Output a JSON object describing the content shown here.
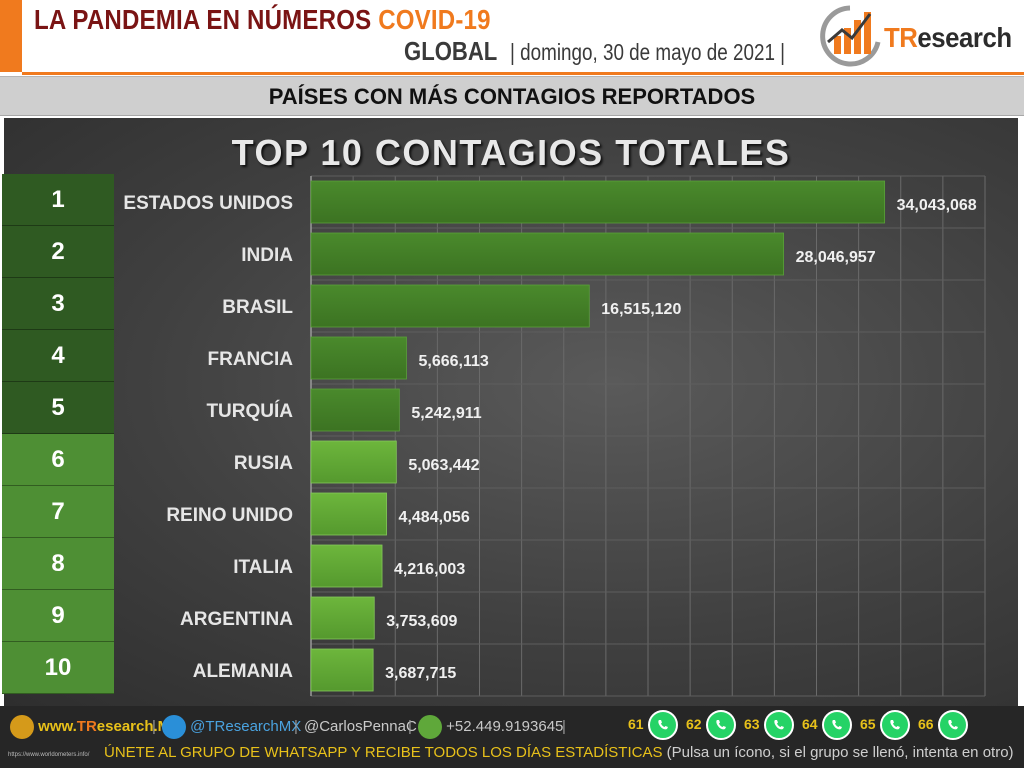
{
  "header": {
    "title_main": "LA PANDEMIA EN NÚMEROS",
    "title_accent": "COVID-19",
    "scope": "GLOBAL",
    "date": "| domingo, 30 de mayo de 2021 |",
    "logo_text_accent": "TR",
    "logo_text_rest": "esearch"
  },
  "section": {
    "title": "PAÍSES CON MÁS CONTAGIOS REPORTADOS"
  },
  "chart_data": {
    "type": "bar",
    "orientation": "horizontal",
    "title": "TOP 10 CONTAGIOS TOTALES",
    "ranks": [
      "1",
      "2",
      "3",
      "4",
      "5",
      "6",
      "7",
      "8",
      "9",
      "10"
    ],
    "categories": [
      "ESTADOS UNIDOS",
      "INDIA",
      "BRASIL",
      "FRANCIA",
      "TURQUÍA",
      "RUSIA",
      "REINO UNIDO",
      "ITALIA",
      "ARGENTINA",
      "ALEMANIA"
    ],
    "values": [
      34043068,
      28046957,
      16515120,
      5666113,
      5242911,
      5063442,
      4484056,
      4216003,
      3753609,
      3687715
    ],
    "value_labels": [
      "34,043,068",
      "28,046,957",
      "16,515,120",
      "5,666,113",
      "5,242,911",
      "5,063,442",
      "4,484,056",
      "4,216,003",
      "3,753,609",
      "3,687,715"
    ],
    "xlim": [
      0,
      40000000
    ],
    "grid": true,
    "colors": {
      "top5_bar": "#4a8a2c",
      "rest_bar": "#6db63c",
      "rank_dark": "#2f5a22",
      "rank_light": "#4e8f34"
    }
  },
  "footer": {
    "site_prefix": "www.",
    "site_accent": "TR",
    "site_rest": "esearch.Mx",
    "twitter": "@TResearchMX",
    "author": "@CarlosPennaC",
    "phone": "+52.449.9193645",
    "whatsapp_groups": [
      "61",
      "62",
      "63",
      "64",
      "65",
      "66"
    ],
    "cta": "ÚNETE AL GRUPO DE WHATSAPP Y RECIBE TODOS LOS DÍAS ESTADÍSTICAS",
    "cta_paren": "(Pulsa un ícono, si el grupo se llenó, intenta en otro)",
    "tiny_url": "https://www.worldometers.info/"
  }
}
